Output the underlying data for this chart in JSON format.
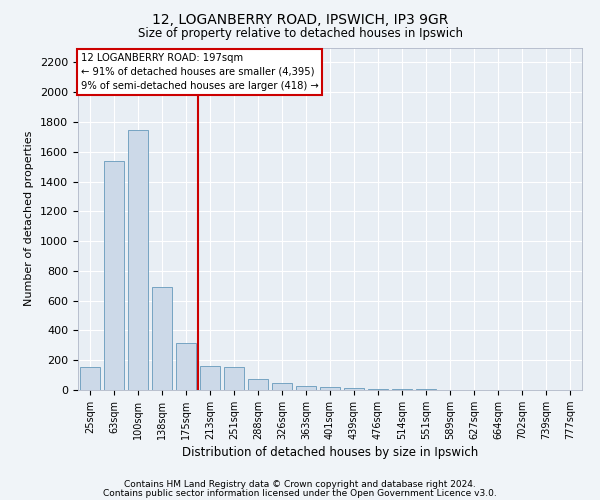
{
  "title1": "12, LOGANBERRY ROAD, IPSWICH, IP3 9GR",
  "title2": "Size of property relative to detached houses in Ipswich",
  "xlabel": "Distribution of detached houses by size in Ipswich",
  "ylabel": "Number of detached properties",
  "footnote1": "Contains HM Land Registry data © Crown copyright and database right 2024.",
  "footnote2": "Contains public sector information licensed under the Open Government Licence v3.0.",
  "annotation_line1": "12 LOGANBERRY ROAD: 197sqm",
  "annotation_line2": "← 91% of detached houses are smaller (4,395)",
  "annotation_line3": "9% of semi-detached houses are larger (418) →",
  "bar_color": "#ccd9e8",
  "bar_edge_color": "#6699bb",
  "redline_index": 5,
  "categories": [
    "25sqm",
    "63sqm",
    "100sqm",
    "138sqm",
    "175sqm",
    "213sqm",
    "251sqm",
    "288sqm",
    "326sqm",
    "363sqm",
    "401sqm",
    "439sqm",
    "476sqm",
    "514sqm",
    "551sqm",
    "589sqm",
    "627sqm",
    "664sqm",
    "702sqm",
    "739sqm",
    "777sqm"
  ],
  "values": [
    155,
    1540,
    1745,
    690,
    315,
    160,
    155,
    75,
    45,
    30,
    18,
    12,
    8,
    5,
    4,
    3,
    2,
    2,
    1,
    1,
    1
  ],
  "ylim": [
    0,
    2300
  ],
  "yticks": [
    0,
    200,
    400,
    600,
    800,
    1000,
    1200,
    1400,
    1600,
    1800,
    2000,
    2200
  ],
  "bg_color": "#f0f4f8",
  "plot_bg_color": "#e8eef4",
  "grid_color": "#ffffff",
  "annotation_box_facecolor": "#ffffff",
  "annotation_box_edgecolor": "#cc0000",
  "redline_color": "#cc0000"
}
